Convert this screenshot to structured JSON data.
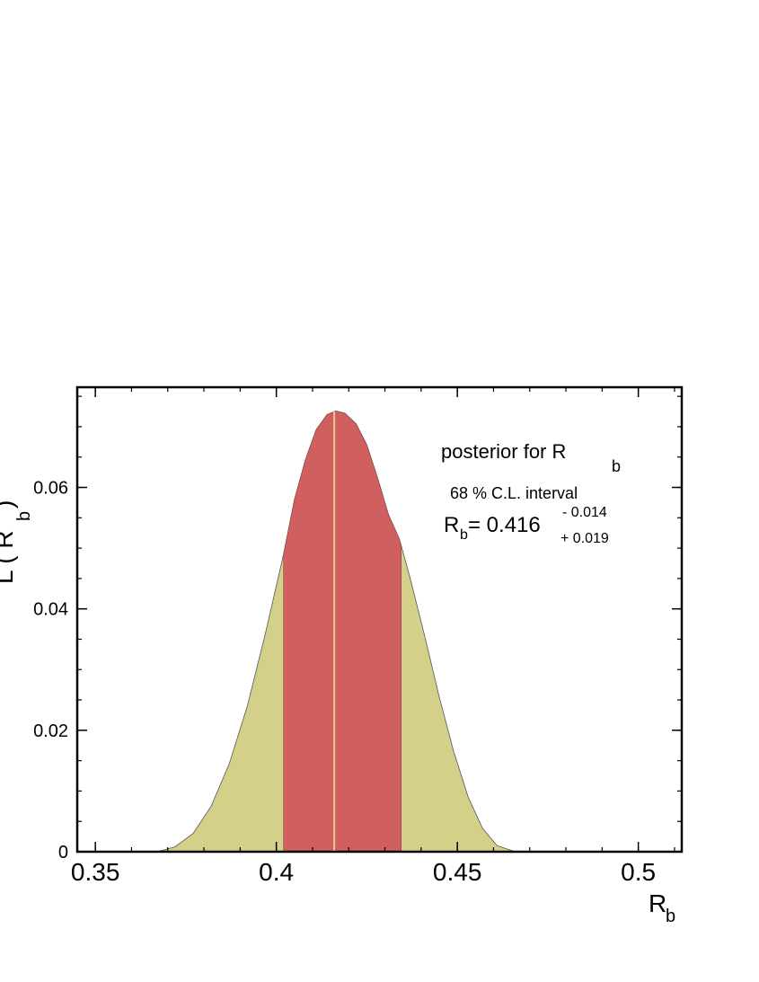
{
  "chart_data": {
    "type": "area",
    "title": "",
    "xlabel": "R",
    "xlabel_sub": "b",
    "ylabel": "L ( R",
    "ylabel_sub": "b",
    "ylabel_close": ")",
    "xlim": [
      0.345,
      0.512
    ],
    "ylim": [
      0,
      0.0765
    ],
    "x_ticks": [
      0.35,
      0.4,
      0.45,
      0.5
    ],
    "x_tick_labels": [
      "0.35",
      "0.4",
      "0.45",
      "0.5"
    ],
    "y_ticks": [
      0,
      0.02,
      0.04,
      0.06
    ],
    "y_tick_labels": [
      "0",
      "0.02",
      "0.04",
      "0.06"
    ],
    "grid": false,
    "series": [
      {
        "role": "posterior",
        "color": "#d4d08a",
        "x": [
          0.367,
          0.372,
          0.377,
          0.382,
          0.387,
          0.392,
          0.397,
          0.402,
          0.405,
          0.408,
          0.411,
          0.414,
          0.4165,
          0.419,
          0.422,
          0.425,
          0.428,
          0.431,
          0.434,
          0.437,
          0.441,
          0.445,
          0.449,
          0.453,
          0.457,
          0.461,
          0.466
        ],
        "y": [
          0,
          0.0008,
          0.003,
          0.0075,
          0.0145,
          0.024,
          0.036,
          0.049,
          0.058,
          0.0645,
          0.0695,
          0.072,
          0.0726,
          0.0722,
          0.0705,
          0.067,
          0.0615,
          0.0555,
          0.0515,
          0.045,
          0.0355,
          0.0255,
          0.0165,
          0.009,
          0.0038,
          0.001,
          0
        ]
      }
    ],
    "interval": {
      "label": "68 % C.L. interval",
      "low": 0.402,
      "high": 0.4345,
      "color": "#d06060"
    },
    "central_value": 0.416,
    "annotation": {
      "title": "posterior for  R",
      "title_sub": "b",
      "subtitle": "68 % C.L. interval",
      "value_lhs": "R",
      "value_lhs_sub": "b",
      "value_text": " = 0.416",
      "err_upper": "- 0.014",
      "err_lower": "+ 0.019"
    }
  }
}
